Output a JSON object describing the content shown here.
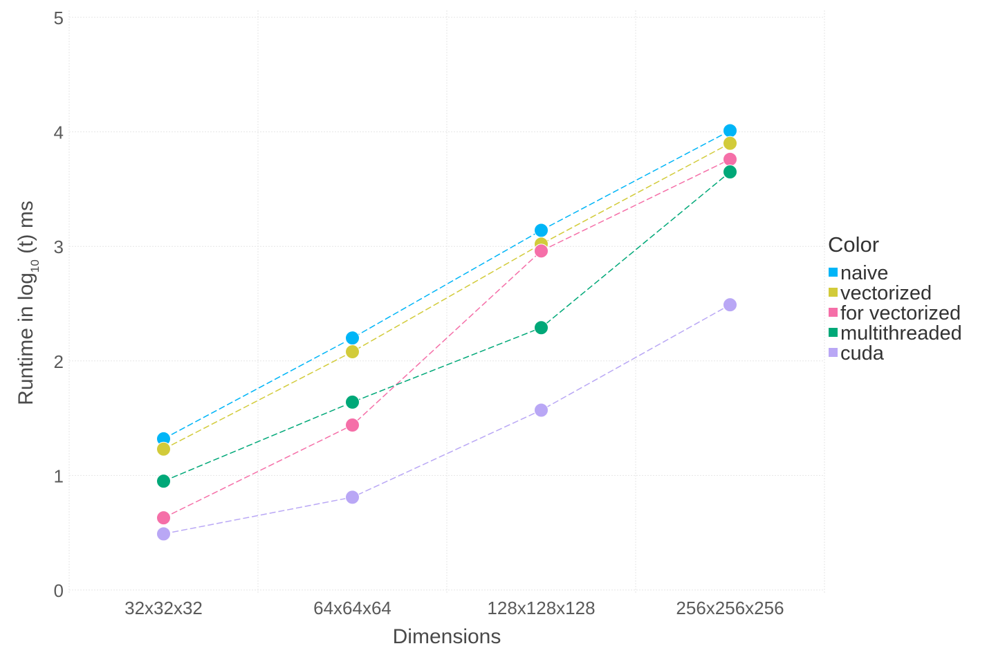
{
  "chart_data": {
    "type": "line",
    "categories": [
      "32x32x32",
      "64x64x64",
      "128x128x128",
      "256x256x256"
    ],
    "xlabel": "Dimensions",
    "ylabel": {
      "prefix": "Runtime in log",
      "subscript": "10",
      "suffix": " (t) ms"
    },
    "ylim": [
      0,
      5
    ],
    "yticks": [
      "0",
      "1",
      "2",
      "3",
      "4",
      "5"
    ],
    "grid": true,
    "legend": {
      "title": "Color",
      "position": "right"
    },
    "series": [
      {
        "name": "naive",
        "color": "#00b5f7",
        "values": [
          1.32,
          2.2,
          3.14,
          4.01
        ]
      },
      {
        "name": "vectorized",
        "color": "#d2cb3a",
        "values": [
          1.23,
          2.08,
          3.02,
          3.9
        ]
      },
      {
        "name": "for vectorized",
        "color": "#f56fa8",
        "values": [
          0.63,
          1.44,
          2.96,
          3.76
        ]
      },
      {
        "name": "multithreaded",
        "color": "#00a878",
        "values": [
          0.95,
          1.64,
          2.29,
          3.65
        ]
      },
      {
        "name": "cuda",
        "color": "#b9a7f5",
        "values": [
          0.49,
          0.81,
          1.57,
          2.49
        ]
      }
    ]
  }
}
